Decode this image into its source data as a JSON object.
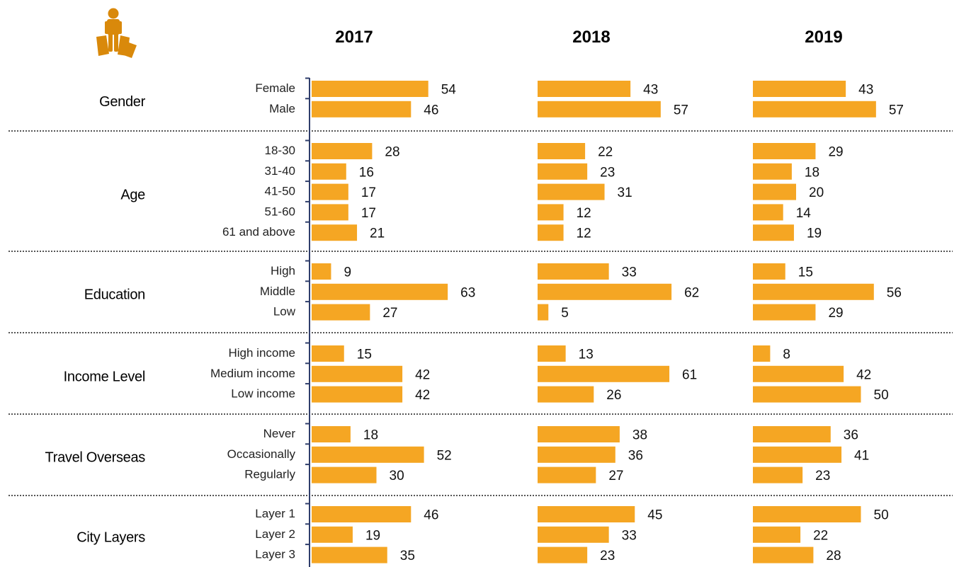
{
  "icon": "shopper-with-bags-icon",
  "colors": {
    "bar": "#F5A623",
    "icon": "#D9890B",
    "axis": "#2F3E6B",
    "separator": "#555555"
  },
  "chart_data": {
    "type": "bar",
    "orientation": "horizontal",
    "years": [
      "2017",
      "2018",
      "2019"
    ],
    "groups": [
      {
        "name": "Gender",
        "categories": [
          "Female",
          "Male"
        ],
        "values": {
          "2017": [
            54,
            46
          ],
          "2018": [
            43,
            57
          ],
          "2019": [
            43,
            57
          ]
        }
      },
      {
        "name": "Age",
        "categories": [
          "18-30",
          "31-40",
          "41-50",
          "51-60",
          "61 and above"
        ],
        "values": {
          "2017": [
            28,
            16,
            17,
            17,
            21
          ],
          "2018": [
            22,
            23,
            31,
            12,
            12
          ],
          "2019": [
            29,
            18,
            20,
            14,
            19
          ]
        }
      },
      {
        "name": "Education",
        "categories": [
          "High",
          "Middle",
          "Low"
        ],
        "values": {
          "2017": [
            9,
            63,
            27
          ],
          "2018": [
            33,
            62,
            5
          ],
          "2019": [
            15,
            56,
            29
          ]
        }
      },
      {
        "name": "Income Level",
        "categories": [
          "High income",
          "Medium income",
          "Low income"
        ],
        "values": {
          "2017": [
            15,
            42,
            42
          ],
          "2018": [
            13,
            61,
            26
          ],
          "2019": [
            8,
            42,
            50
          ]
        }
      },
      {
        "name": "Travel Overseas",
        "categories": [
          "Never",
          "Occasionally",
          "Regularly"
        ],
        "values": {
          "2017": [
            18,
            52,
            30
          ],
          "2018": [
            38,
            36,
            27
          ],
          "2019": [
            36,
            41,
            23
          ]
        }
      },
      {
        "name": "City Layers",
        "categories": [
          "Layer 1",
          "Layer 2",
          "Layer 3"
        ],
        "values": {
          "2017": [
            46,
            19,
            35
          ],
          "2018": [
            45,
            33,
            23
          ],
          "2019": [
            50,
            22,
            28
          ]
        }
      }
    ],
    "grid": false,
    "legend": "none"
  }
}
